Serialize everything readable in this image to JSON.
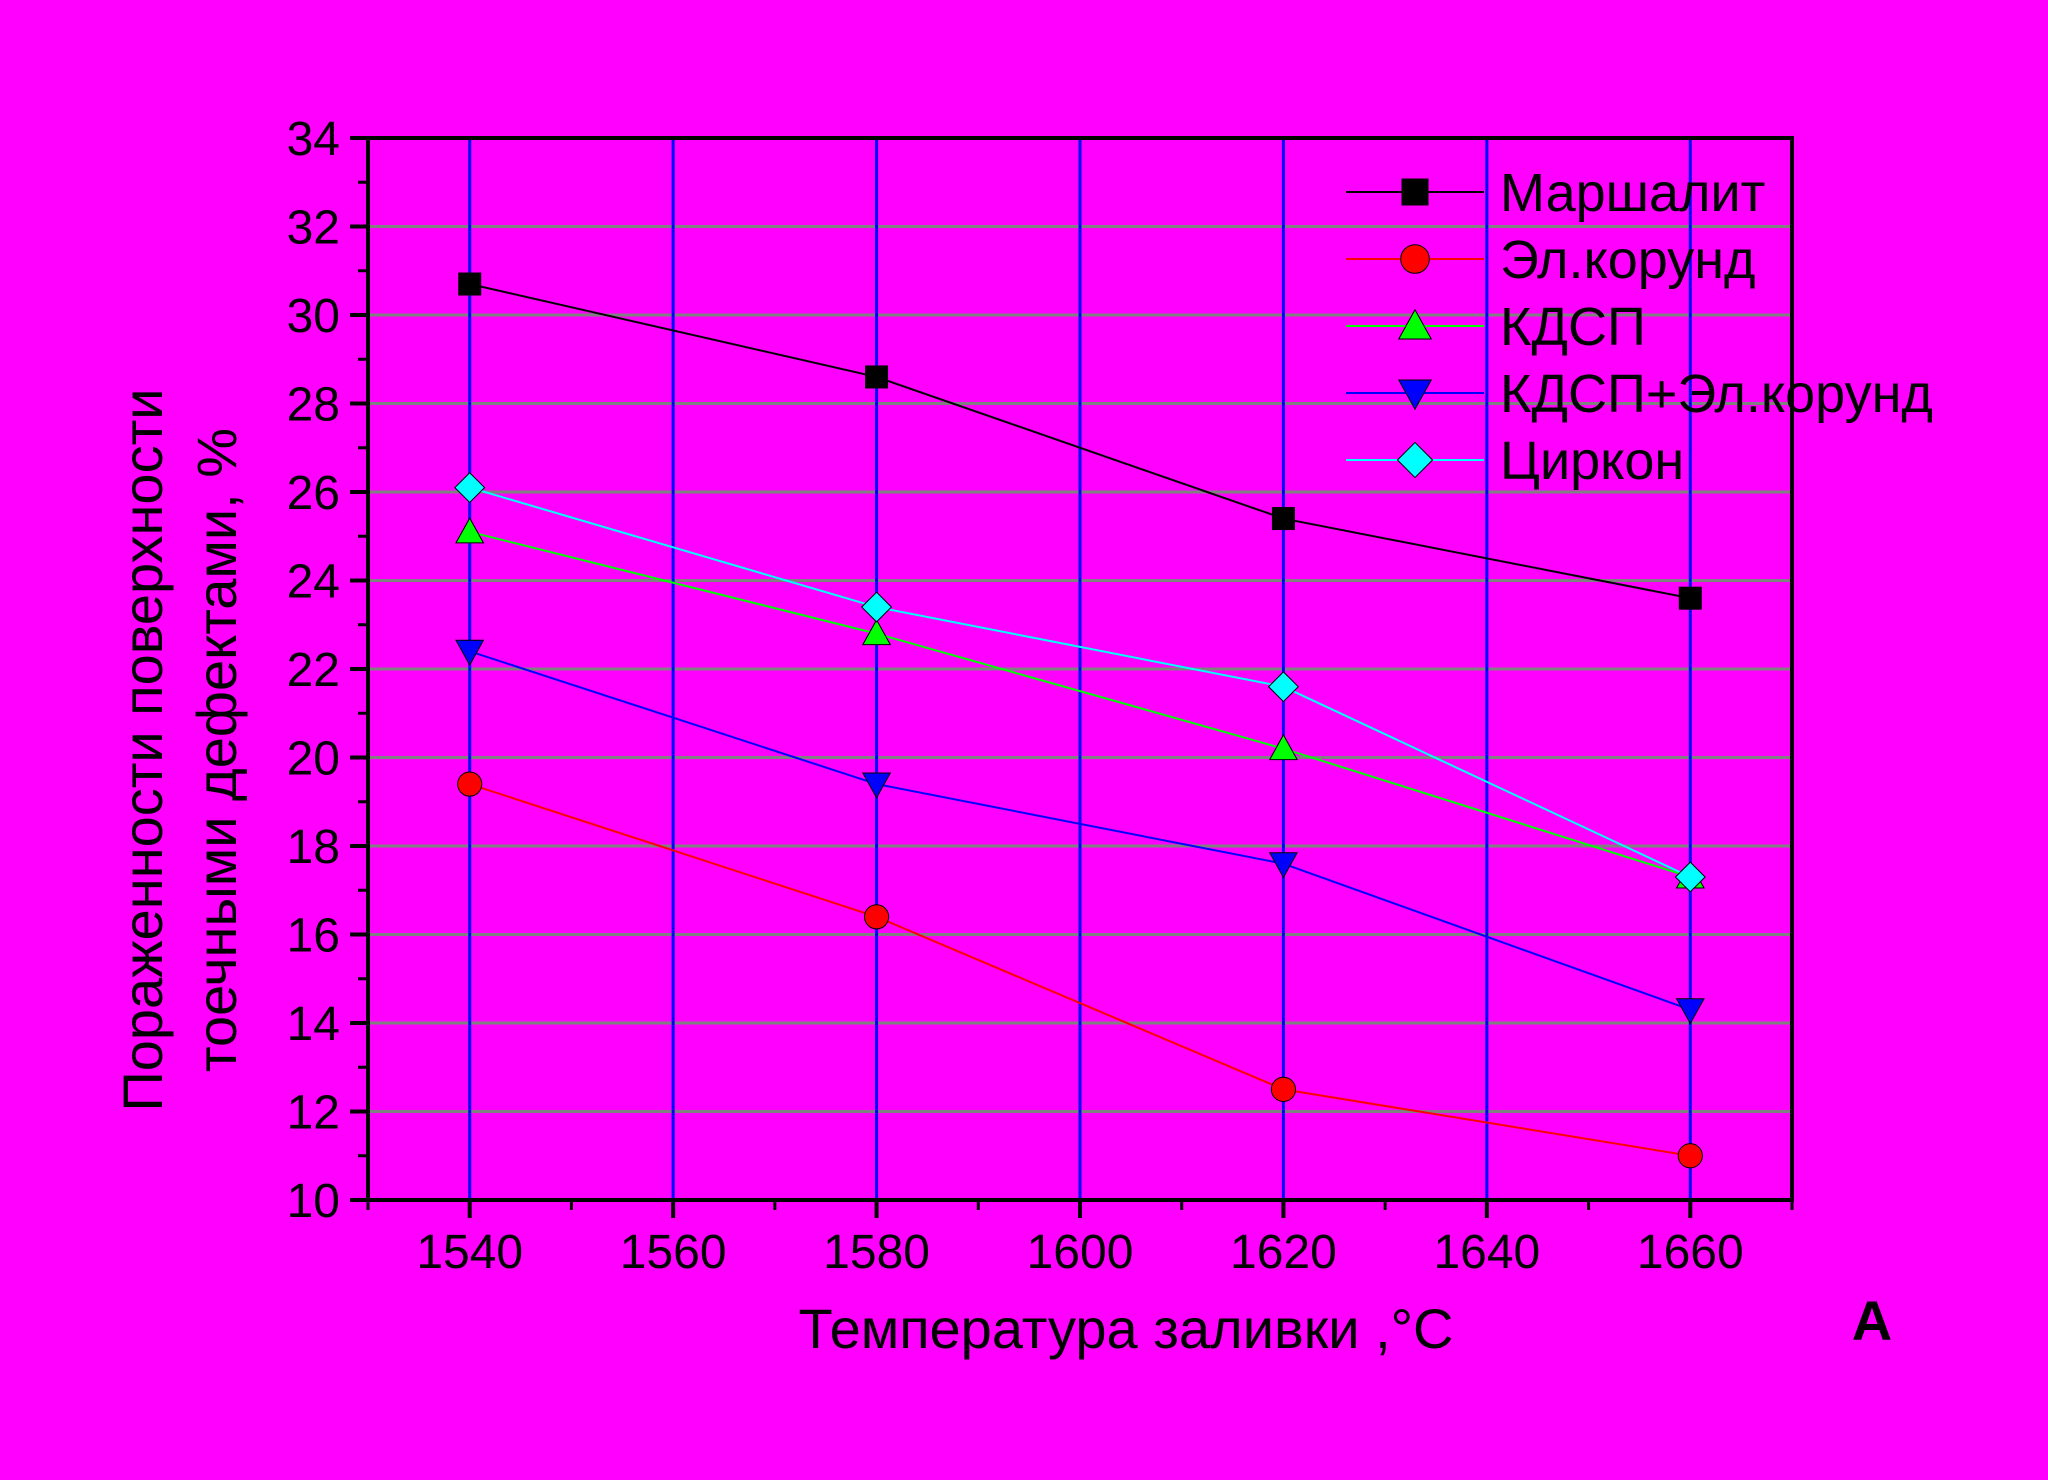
{
  "colors": {
    "figure_bg": "#FF00FF",
    "outer_bg": "#000000",
    "grid_x": "#0000FF",
    "grid_y": "#808080",
    "axis": "#000000"
  },
  "panel_label": "A",
  "chart_data": {
    "type": "line",
    "xlabel": "Температура заливки ,°С",
    "ylabel_lines": [
      "Пораженности поверхности",
      "тоечными дефектами, %"
    ],
    "xlim": [
      1530,
      1670
    ],
    "ylim": [
      10,
      34
    ],
    "xticks": [
      1540,
      1560,
      1580,
      1600,
      1620,
      1640,
      1660
    ],
    "yticks": [
      10,
      12,
      14,
      16,
      18,
      20,
      22,
      24,
      26,
      28,
      30,
      32,
      34
    ],
    "grid": true,
    "legend_position": "top-right",
    "x": [
      1540,
      1580,
      1620,
      1660
    ],
    "series": [
      {
        "name": "Маршалит",
        "values": [
          30.7,
          28.6,
          25.4,
          23.6
        ],
        "color": "#000000",
        "marker": "square"
      },
      {
        "name": "Эл.корунд",
        "values": [
          19.4,
          16.4,
          12.5,
          11.0
        ],
        "color": "#FF0000",
        "marker": "circle"
      },
      {
        "name": "КДСП",
        "values": [
          25.1,
          22.8,
          20.2,
          17.3
        ],
        "color": "#00FF00",
        "marker": "triangle-up"
      },
      {
        "name": "КДСП+Эл.корунд",
        "values": [
          22.4,
          19.4,
          17.6,
          14.3
        ],
        "color": "#0000FF",
        "marker": "triangle-down"
      },
      {
        "name": "Циркон",
        "values": [
          26.1,
          23.4,
          21.6,
          17.3
        ],
        "color": "#00FFFF",
        "marker": "diamond"
      }
    ]
  }
}
